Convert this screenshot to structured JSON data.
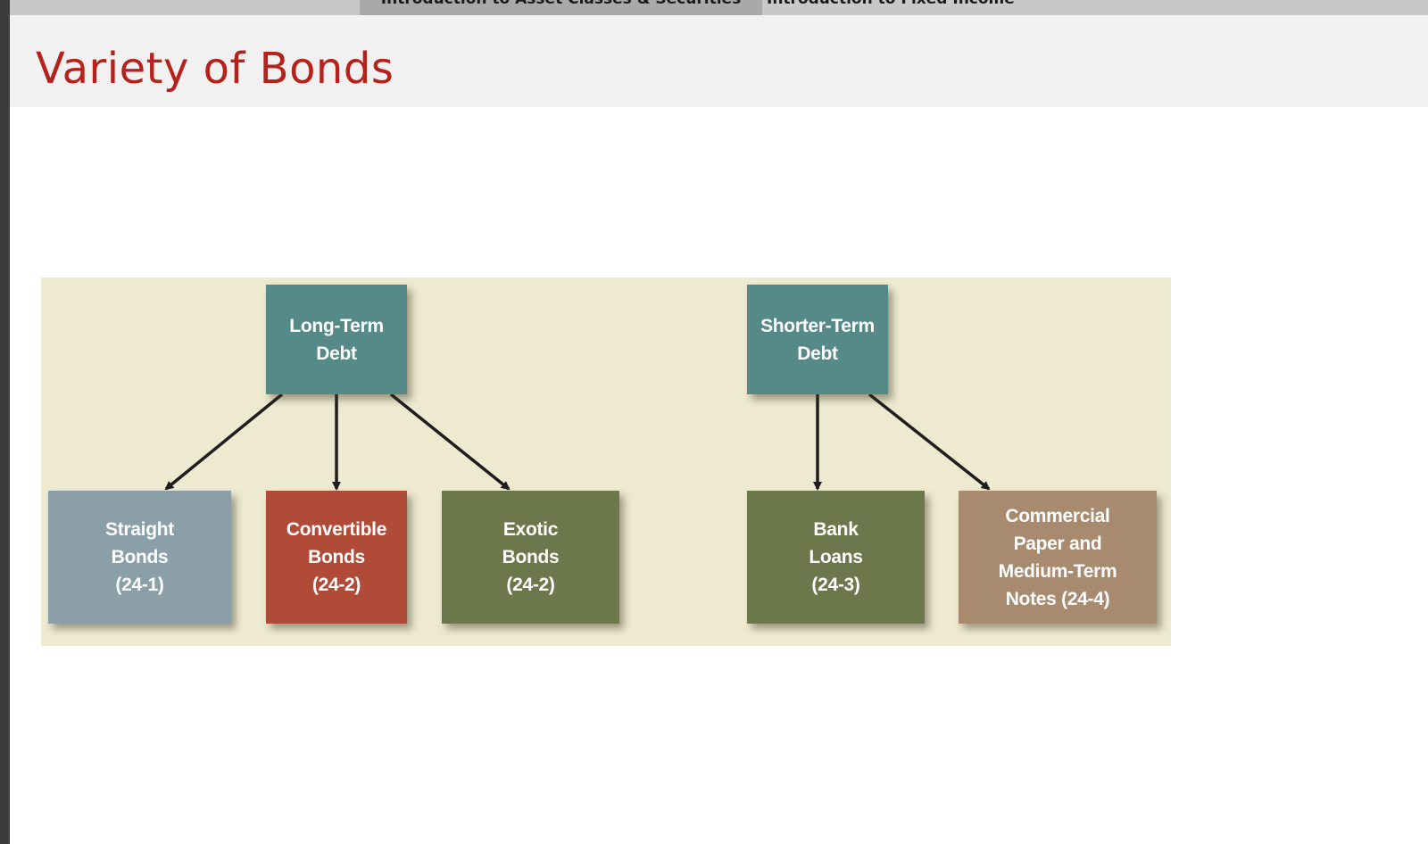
{
  "nav": {
    "tabs": [
      {
        "label": "Introduction to Asset Classes & Securities",
        "active": true
      },
      {
        "label": "Introduction to Fixed Income",
        "active": false
      }
    ]
  },
  "title": "Variety of Bonds",
  "diagram": {
    "background": "#eeead0",
    "parents": [
      {
        "id": "long",
        "label": "Long-Term\nDebt",
        "color": "#568a89"
      },
      {
        "id": "short",
        "label": "Shorter-Term\nDebt",
        "color": "#568a89"
      }
    ],
    "children": [
      {
        "id": "straight",
        "parent": "long",
        "label": "Straight\nBonds\n(24-1)",
        "color": "#8a9fa8"
      },
      {
        "id": "convertible",
        "parent": "long",
        "label": "Convertible\nBonds\n(24-2)",
        "color": "#b04b37"
      },
      {
        "id": "exotic",
        "parent": "long",
        "label": "Exotic\nBonds\n(24-2)",
        "color": "#6c774c"
      },
      {
        "id": "bank",
        "parent": "short",
        "label": "Bank\nLoans\n(24-3)",
        "color": "#6c774c"
      },
      {
        "id": "commercial",
        "parent": "short",
        "label": "Commercial\nPaper and\nMedium-Term\nNotes (24-4)",
        "color": "#a88a6f"
      }
    ]
  }
}
